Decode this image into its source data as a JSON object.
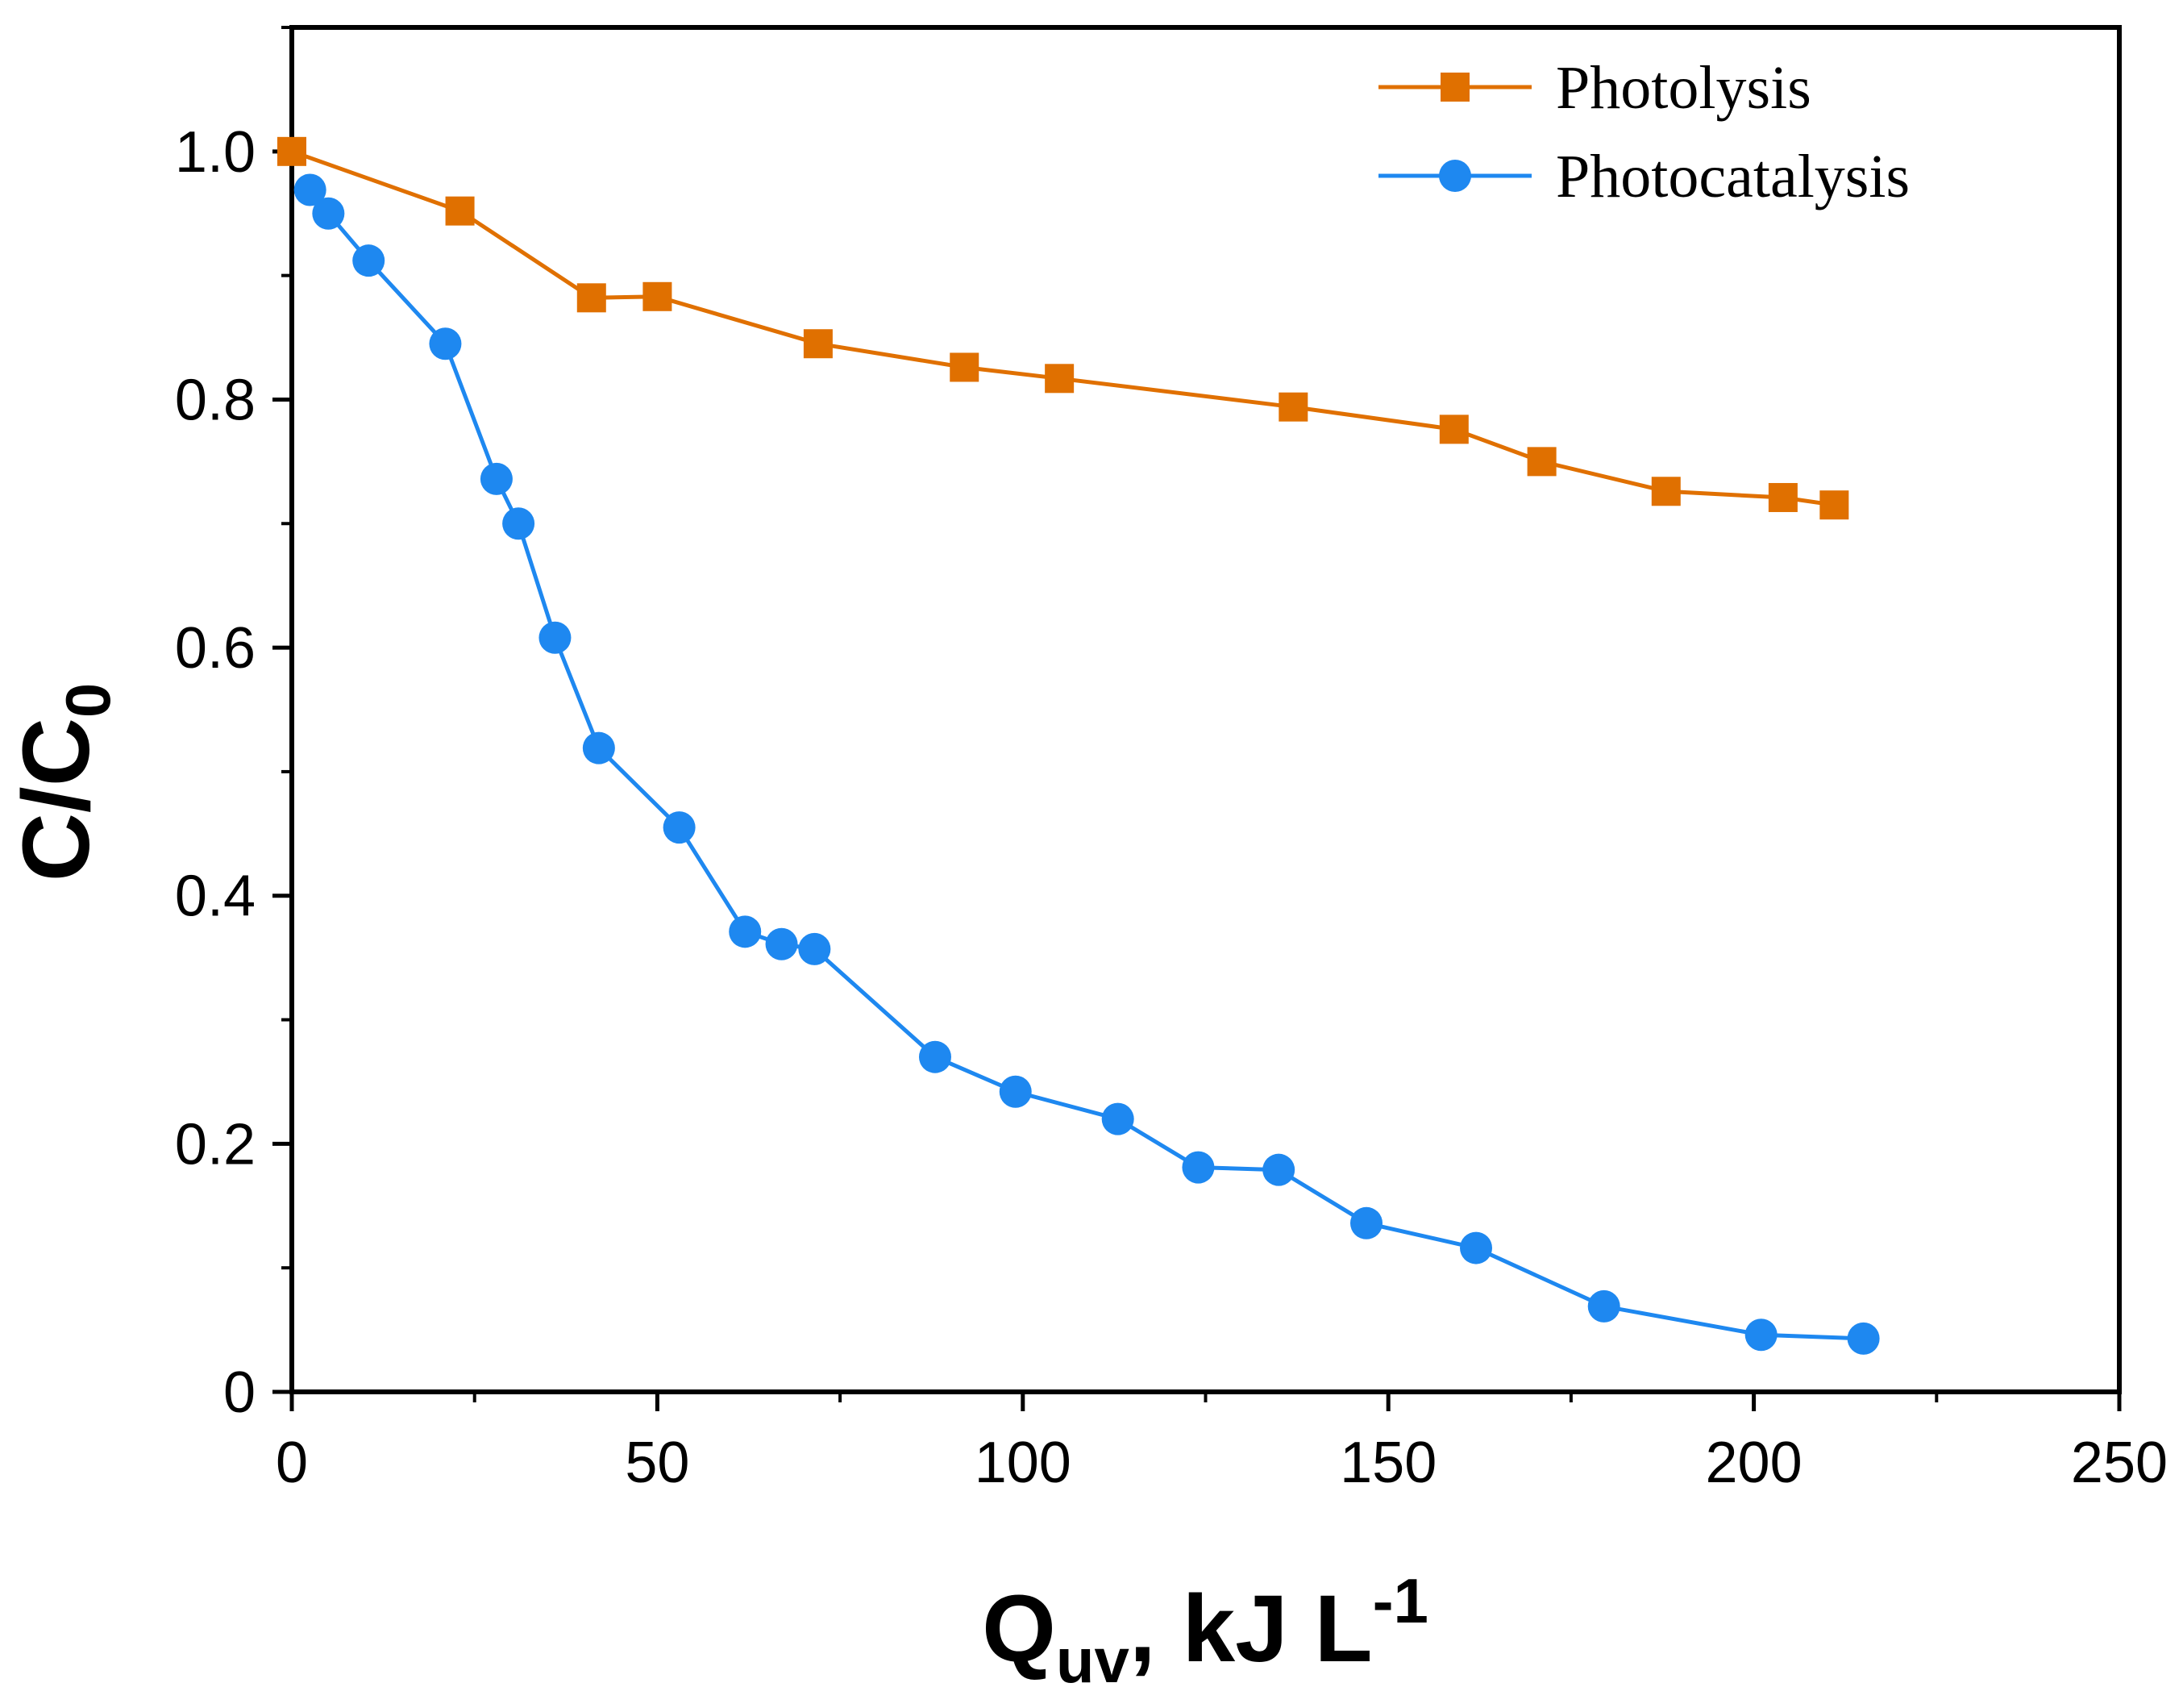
{
  "chart_data": {
    "type": "line",
    "title": "",
    "xlabel": "Q",
    "xlabel_sub": "uv",
    "xlabel_rest": ", kJ L",
    "xlabel_sup": "-1",
    "ylabel": "C/C",
    "ylabel_sub": "0",
    "xlim": [
      0,
      250
    ],
    "ylim": [
      0,
      1.1
    ],
    "xticks": [
      0,
      50,
      100,
      150,
      200,
      250
    ],
    "yticks": [
      0,
      0.2,
      0.4,
      0.6,
      0.8,
      1.0
    ],
    "ytick_labels": [
      "0",
      "0.2",
      "0.4",
      "0.6",
      "0.8",
      "1.0"
    ],
    "grid": false,
    "legend_position": "top-right",
    "series": [
      {
        "name": "Photolysis",
        "color": "#E07000",
        "marker": "square",
        "x": [
          0,
          23,
          41,
          50,
          72,
          92,
          105,
          137,
          159,
          171,
          188,
          204,
          211
        ],
        "y": [
          1.0,
          0.952,
          0.882,
          0.883,
          0.845,
          0.826,
          0.817,
          0.794,
          0.776,
          0.75,
          0.726,
          0.721,
          0.715
        ]
      },
      {
        "name": "Photocatalysis",
        "color": "#1E88F0",
        "marker": "circle",
        "x": [
          2.5,
          5,
          10.5,
          21,
          28,
          31,
          36,
          42,
          53,
          62,
          67,
          71.5,
          88,
          99,
          113,
          124,
          135,
          147,
          162,
          179.5,
          201,
          215
        ],
        "y": [
          0.969,
          0.95,
          0.912,
          0.845,
          0.736,
          0.7,
          0.608,
          0.519,
          0.455,
          0.371,
          0.361,
          0.357,
          0.27,
          0.242,
          0.22,
          0.181,
          0.179,
          0.136,
          0.116,
          0.069,
          0.046,
          0.043
        ]
      }
    ]
  }
}
